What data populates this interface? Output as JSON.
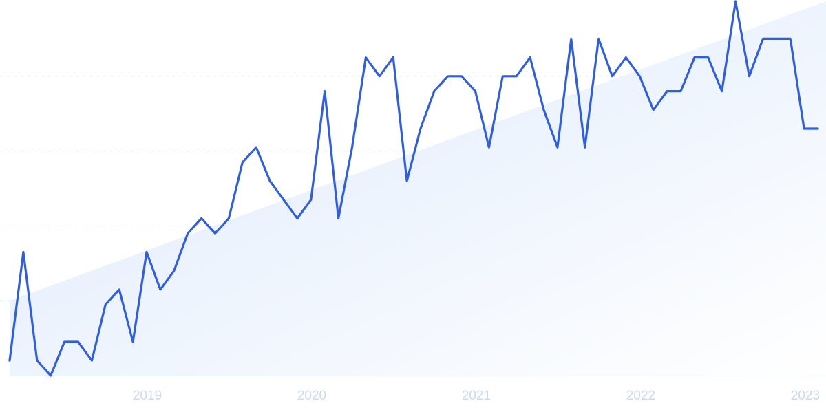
{
  "chart_data": {
    "type": "line",
    "title": "",
    "xlabel": "",
    "ylabel": "",
    "x_tick_labels": [
      "2019",
      "2020",
      "2021",
      "2022",
      "2023"
    ],
    "grid": "horizontal dashed",
    "legend": "none",
    "trend_fill": true,
    "colors": {
      "line": "#2f5fe0",
      "trend_fill_top": "#dce9fb",
      "trend_fill_bottom": "#ffffff",
      "grid": "#dfe3ea",
      "tick_label": "#cdd8f6"
    },
    "ylim": [
      0,
      100
    ],
    "trend": {
      "start": 20,
      "end": 100
    },
    "series": [
      {
        "values": [
          4,
          33,
          4,
          0,
          9,
          9,
          4,
          19,
          23,
          9,
          33,
          23,
          28,
          38,
          42,
          38,
          42,
          57,
          61,
          52,
          47,
          42,
          47,
          76,
          42,
          61,
          85,
          80,
          85,
          52,
          66,
          76,
          80,
          80,
          76,
          61,
          80,
          80,
          85,
          71,
          61,
          90,
          61,
          90,
          80,
          85,
          80,
          71,
          76,
          76,
          85,
          85,
          76,
          100,
          80,
          90,
          90,
          90,
          66,
          66
        ]
      }
    ]
  }
}
